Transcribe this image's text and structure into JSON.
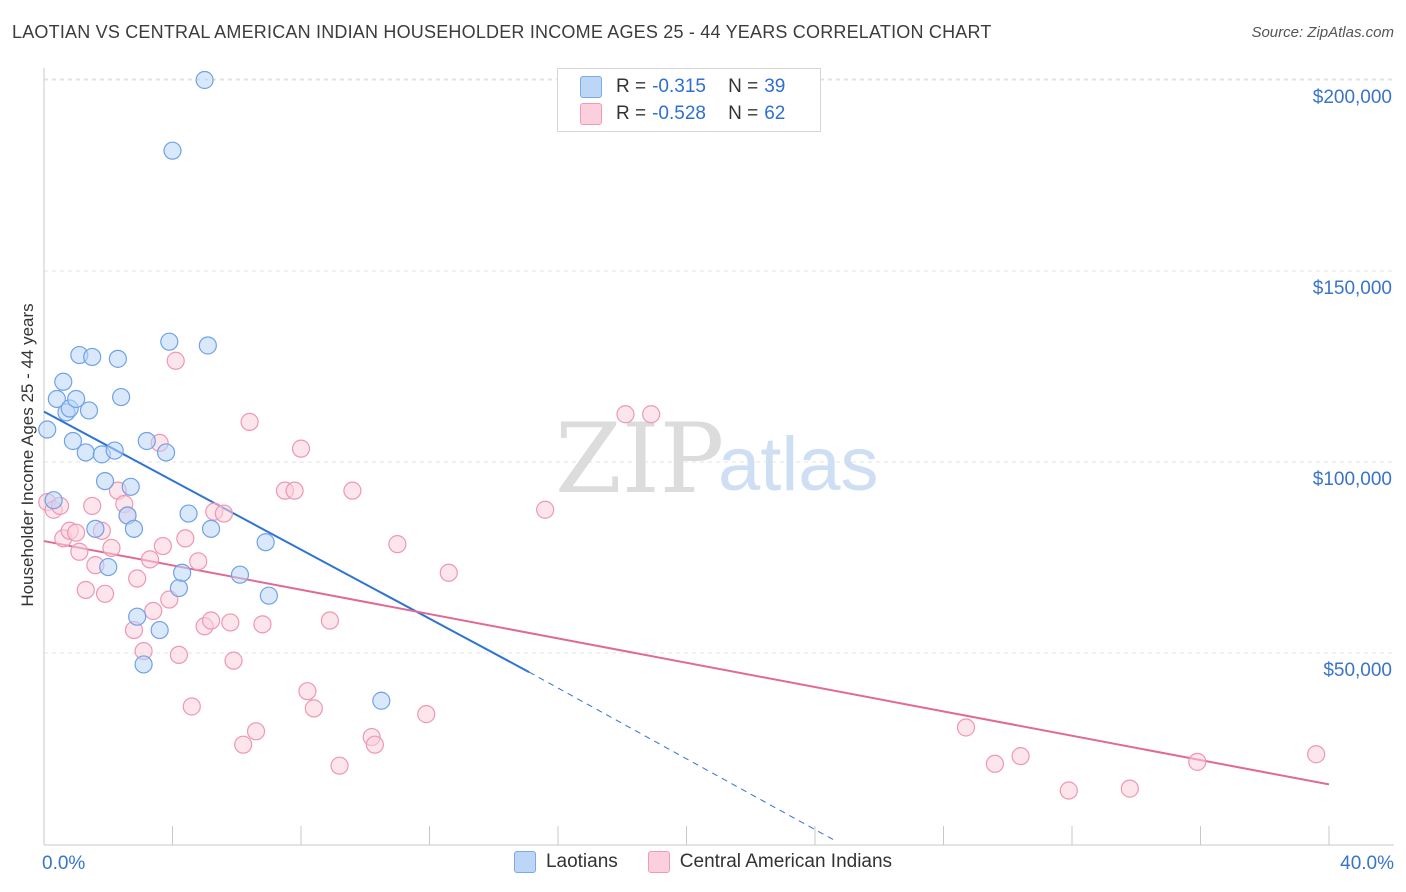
{
  "title": "LAOTIAN VS CENTRAL AMERICAN INDIAN HOUSEHOLDER INCOME AGES 25 - 44 YEARS CORRELATION CHART",
  "source": "Source: ZipAtlas.com",
  "watermark": {
    "zip": "ZIP",
    "atlas": "atlas"
  },
  "legend": {
    "r_label": "R =",
    "n_label": "N =",
    "series": [
      {
        "name": "Laotians",
        "r": "-0.315",
        "n": "39"
      },
      {
        "name": "Central American Indians",
        "r": "-0.528",
        "n": "62"
      }
    ]
  },
  "colors": {
    "blue_fill": "#bcd6f7",
    "blue_stroke": "#6fa3e6",
    "blue_line": "#2f74d0",
    "pink_fill": "#fbcfdd",
    "pink_stroke": "#ee97b5",
    "pink_line": "#e06a93",
    "tick_label": "#3a74c9",
    "grid": "#e3e3e3"
  },
  "chart_data": {
    "type": "scatter",
    "title": "LAOTIAN VS CENTRAL AMERICAN INDIAN HOUSEHOLDER INCOME AGES 25 - 44 YEARS CORRELATION CHART",
    "xlabel": "",
    "ylabel": "Householder Income Ages 25 - 44 years",
    "xlim": [
      0,
      40
    ],
    "ylim": [
      0,
      205000
    ],
    "x_tick_labels": [
      "0.0%",
      "40.0%"
    ],
    "y_ticks": [
      50000,
      100000,
      150000,
      200000
    ],
    "y_tick_labels": [
      "$50,000",
      "$100,000",
      "$150,000",
      "$200,000"
    ],
    "grid": true,
    "series": [
      {
        "name": "Laotians",
        "color": "blue",
        "points": [
          [
            0.1,
            108500
          ],
          [
            0.3,
            90000
          ],
          [
            0.4,
            116500
          ],
          [
            0.6,
            121000
          ],
          [
            0.7,
            113000
          ],
          [
            0.8,
            114000
          ],
          [
            0.9,
            105500
          ],
          [
            1.0,
            116500
          ],
          [
            1.1,
            128000
          ],
          [
            1.3,
            102500
          ],
          [
            1.4,
            113500
          ],
          [
            1.5,
            127500
          ],
          [
            1.6,
            82500
          ],
          [
            1.8,
            102000
          ],
          [
            1.9,
            95000
          ],
          [
            2.0,
            72500
          ],
          [
            2.2,
            103000
          ],
          [
            2.3,
            127000
          ],
          [
            2.4,
            117000
          ],
          [
            2.6,
            86000
          ],
          [
            2.7,
            93500
          ],
          [
            2.8,
            82500
          ],
          [
            2.9,
            59500
          ],
          [
            3.1,
            47000
          ],
          [
            3.2,
            105500
          ],
          [
            3.6,
            56000
          ],
          [
            3.8,
            102500
          ],
          [
            3.9,
            131500
          ],
          [
            4.0,
            181500
          ],
          [
            4.2,
            67000
          ],
          [
            4.3,
            71000
          ],
          [
            4.5,
            86500
          ],
          [
            5.0,
            200000
          ],
          [
            5.1,
            130500
          ],
          [
            5.2,
            82500
          ],
          [
            6.1,
            70500
          ],
          [
            6.9,
            79000
          ],
          [
            7.0,
            65000
          ],
          [
            10.5,
            37500
          ]
        ]
      },
      {
        "name": "Central American Indians",
        "color": "pink",
        "points": [
          [
            0.1,
            89500
          ],
          [
            0.3,
            87500
          ],
          [
            0.5,
            88500
          ],
          [
            0.6,
            80000
          ],
          [
            0.8,
            82000
          ],
          [
            1.0,
            81500
          ],
          [
            1.1,
            76500
          ],
          [
            1.3,
            66500
          ],
          [
            1.5,
            88500
          ],
          [
            1.6,
            73000
          ],
          [
            1.8,
            82000
          ],
          [
            1.9,
            65500
          ],
          [
            2.1,
            77500
          ],
          [
            2.3,
            92500
          ],
          [
            2.5,
            89000
          ],
          [
            2.6,
            86000
          ],
          [
            2.8,
            56000
          ],
          [
            2.9,
            69500
          ],
          [
            3.1,
            50500
          ],
          [
            3.3,
            74500
          ],
          [
            3.4,
            61000
          ],
          [
            3.6,
            105000
          ],
          [
            3.7,
            78000
          ],
          [
            3.9,
            64000
          ],
          [
            4.1,
            126500
          ],
          [
            4.2,
            49500
          ],
          [
            4.4,
            80000
          ],
          [
            4.6,
            36000
          ],
          [
            4.8,
            74000
          ],
          [
            5.0,
            57000
          ],
          [
            5.2,
            58500
          ],
          [
            5.3,
            87000
          ],
          [
            5.6,
            86500
          ],
          [
            5.8,
            58000
          ],
          [
            5.9,
            48000
          ],
          [
            6.2,
            26000
          ],
          [
            6.4,
            110500
          ],
          [
            6.6,
            29500
          ],
          [
            6.8,
            57500
          ],
          [
            7.5,
            92500
          ],
          [
            7.8,
            92500
          ],
          [
            8.0,
            103500
          ],
          [
            8.2,
            40000
          ],
          [
            8.4,
            35500
          ],
          [
            8.9,
            58500
          ],
          [
            9.2,
            20500
          ],
          [
            9.6,
            92500
          ],
          [
            10.2,
            28000
          ],
          [
            10.3,
            26000
          ],
          [
            11.0,
            78500
          ],
          [
            11.9,
            34000
          ],
          [
            12.6,
            71000
          ],
          [
            15.6,
            87500
          ],
          [
            18.1,
            112500
          ],
          [
            18.9,
            112500
          ],
          [
            28.7,
            30500
          ],
          [
            29.6,
            21000
          ],
          [
            30.4,
            23000
          ],
          [
            31.9,
            14000
          ],
          [
            33.8,
            14500
          ],
          [
            35.9,
            21500
          ],
          [
            39.6,
            23500
          ]
        ]
      }
    ],
    "trend_lines": [
      {
        "series": "Laotians",
        "x": [
          0,
          15.1
        ],
        "y": [
          113200,
          45000
        ],
        "dashed_to": [
          24.6,
          1000
        ]
      },
      {
        "series": "Central American Indians",
        "x": [
          0,
          40
        ],
        "y": [
          79300,
          15600
        ]
      }
    ]
  }
}
